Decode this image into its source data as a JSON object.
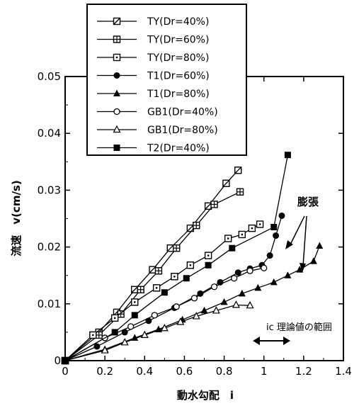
{
  "chart_data": {
    "type": "line",
    "xlabel": "動水勾配　i",
    "ylabel": "流速　v(cm/s)",
    "xlim": [
      0,
      1.4
    ],
    "ylim": [
      0,
      0.05
    ],
    "x_ticks": [
      "0",
      "0.2",
      "0.4",
      "0.6",
      "0.8",
      "1",
      "1.2",
      "1.4"
    ],
    "y_ticks": [
      "0",
      "0.01",
      "0.02",
      "0.03",
      "0.04",
      "0.05"
    ],
    "grid": false,
    "legend_position": "top-left",
    "series": [
      {
        "name": "TY(Dr=40%)",
        "marker": "square-diagonal",
        "points": [
          [
            0,
            0
          ],
          [
            0.17,
            0.005
          ],
          [
            0.26,
            0.0085
          ],
          [
            0.35,
            0.0125
          ],
          [
            0.44,
            0.016
          ],
          [
            0.53,
            0.0198
          ],
          [
            0.63,
            0.0233
          ],
          [
            0.72,
            0.0272
          ],
          [
            0.81,
            0.0312
          ],
          [
            0.87,
            0.0335
          ]
        ]
      },
      {
        "name": "TY(Dr=60%)",
        "marker": "square-plus",
        "points": [
          [
            0,
            0
          ],
          [
            0.17,
            0.0045
          ],
          [
            0.28,
            0.0082
          ],
          [
            0.38,
            0.0125
          ],
          [
            0.47,
            0.0158
          ],
          [
            0.56,
            0.0198
          ],
          [
            0.66,
            0.0238
          ],
          [
            0.75,
            0.0275
          ],
          [
            0.88,
            0.0297
          ]
        ]
      },
      {
        "name": "TY(Dr=80%)",
        "marker": "square-dot",
        "points": [
          [
            0,
            0
          ],
          [
            0.14,
            0.0045
          ],
          [
            0.25,
            0.0075
          ],
          [
            0.35,
            0.0103
          ],
          [
            0.46,
            0.0128
          ],
          [
            0.55,
            0.0148
          ],
          [
            0.63,
            0.0168
          ],
          [
            0.72,
            0.0185
          ],
          [
            0.82,
            0.0215
          ],
          [
            0.89,
            0.0222
          ],
          [
            0.94,
            0.0233
          ],
          [
            0.98,
            0.024
          ]
        ]
      },
      {
        "name": "T1(Dr=60%)",
        "marker": "circle-filled",
        "points": [
          [
            0,
            0
          ],
          [
            0.16,
            0.0025
          ],
          [
            0.3,
            0.005
          ],
          [
            0.42,
            0.007
          ],
          [
            0.55,
            0.0093
          ],
          [
            0.68,
            0.0118
          ],
          [
            0.78,
            0.0138
          ],
          [
            0.87,
            0.0155
          ],
          [
            0.93,
            0.0162
          ],
          [
            0.99,
            0.0168
          ],
          [
            1.03,
            0.0185
          ],
          [
            1.06,
            0.022
          ],
          [
            1.09,
            0.0255
          ]
        ]
      },
      {
        "name": "T1(Dr=80%)",
        "marker": "triangle-filled",
        "points": [
          [
            0,
            0
          ],
          [
            0.2,
            0.002
          ],
          [
            0.35,
            0.004
          ],
          [
            0.47,
            0.0055
          ],
          [
            0.59,
            0.0072
          ],
          [
            0.7,
            0.0088
          ],
          [
            0.8,
            0.0103
          ],
          [
            0.89,
            0.0118
          ],
          [
            0.97,
            0.0128
          ],
          [
            1.05,
            0.0138
          ],
          [
            1.12,
            0.015
          ],
          [
            1.18,
            0.016
          ],
          [
            1.25,
            0.0175
          ],
          [
            1.28,
            0.0202
          ]
        ]
      },
      {
        "name": "GB1(Dr=40%)",
        "marker": "circle-open",
        "points": [
          [
            0,
            0
          ],
          [
            0.2,
            0.004
          ],
          [
            0.33,
            0.006
          ],
          [
            0.45,
            0.008
          ],
          [
            0.56,
            0.0095
          ],
          [
            0.65,
            0.011
          ],
          [
            0.75,
            0.013
          ],
          [
            0.85,
            0.0145
          ],
          [
            0.93,
            0.0158
          ],
          [
            1.0,
            0.0163
          ]
        ]
      },
      {
        "name": "GB1(Dr=80%)",
        "marker": "triangle-open",
        "points": [
          [
            0,
            0
          ],
          [
            0.2,
            0.0018
          ],
          [
            0.3,
            0.0032
          ],
          [
            0.4,
            0.0045
          ],
          [
            0.5,
            0.0057
          ],
          [
            0.58,
            0.0068
          ],
          [
            0.66,
            0.0078
          ],
          [
            0.76,
            0.0088
          ],
          [
            0.86,
            0.0098
          ],
          [
            0.93,
            0.0097
          ]
        ]
      },
      {
        "name": "T2(Dr=40%)",
        "marker": "square-filled",
        "points": [
          [
            0,
            0
          ],
          [
            0.25,
            0.005
          ],
          [
            0.35,
            0.008
          ],
          [
            0.5,
            0.012
          ],
          [
            0.61,
            0.0145
          ],
          [
            0.72,
            0.0168
          ],
          [
            0.84,
            0.0198
          ],
          [
            1.05,
            0.0235
          ],
          [
            1.12,
            0.0362
          ]
        ]
      }
    ],
    "annotations": [
      {
        "text": "膨張"
      },
      {
        "text": "ic 理論値の範囲"
      }
    ]
  }
}
